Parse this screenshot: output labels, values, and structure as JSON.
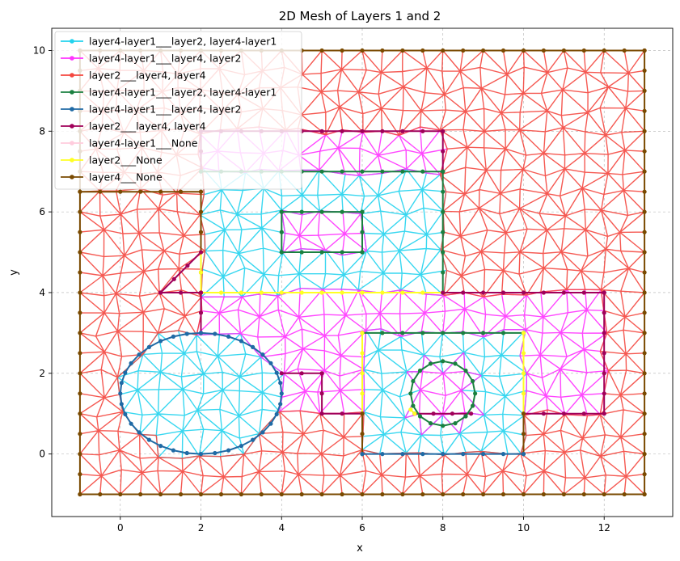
{
  "chart_data": {
    "type": "line",
    "title": "2D Mesh of Layers 1 and 2",
    "xlabel": "x",
    "ylabel": "y",
    "xlim": [
      -1.7,
      13.7
    ],
    "ylim": [
      -1.55,
      10.55
    ],
    "xticks": [
      0,
      2,
      4,
      6,
      8,
      10,
      12
    ],
    "yticks": [
      0,
      2,
      4,
      6,
      8,
      10
    ],
    "grid": true,
    "legend_position": "top-left",
    "series": [
      {
        "name": "layer4-layer1___layer2, layer4-layer1",
        "color": "#22d3ee"
      },
      {
        "name": "layer4-layer1___layer4, layer2",
        "color": "#ff33ff"
      },
      {
        "name": "layer2___layer4, layer4",
        "color": "#f4473f"
      },
      {
        "name": "layer4-layer1___layer2, layer4-layer1",
        "color": "#1a8040"
      },
      {
        "name": "layer4-layer1___layer4, layer2",
        "color": "#1f6aa5"
      },
      {
        "name": "layer2___layer4, layer4",
        "color": "#a0005a"
      },
      {
        "name": "layer4-layer1___None",
        "color": "#ffccdd"
      },
      {
        "name": "layer2___None",
        "color": "#ffff22"
      },
      {
        "name": "layer4___None",
        "color": "#7a4a00"
      }
    ],
    "regions": [
      {
        "series": 2,
        "shape": "rect",
        "x": [
          -1,
          13
        ],
        "y": [
          -1,
          10
        ]
      },
      {
        "series": 1,
        "shape": "rect",
        "x": [
          2,
          8
        ],
        "y": [
          7,
          8
        ]
      },
      {
        "series": 0,
        "shape": "rect",
        "x": [
          2,
          8
        ],
        "y": [
          4,
          7
        ]
      },
      {
        "series": 1,
        "shape": "rect",
        "x": [
          4,
          6
        ],
        "y": [
          5,
          6
        ]
      },
      {
        "series": 1,
        "shape": "rect",
        "x": [
          2,
          12
        ],
        "y": [
          1,
          4
        ]
      },
      {
        "series": 0,
        "shape": "ellipse",
        "cx": 2,
        "cy": 1.5,
        "rx": 2,
        "ry": 1.5
      },
      {
        "series": 0,
        "shape": "rect",
        "x": [
          6,
          10
        ],
        "y": [
          0,
          3
        ]
      },
      {
        "series": 1,
        "shape": "ellipse",
        "cx": 8,
        "cy": 1.5,
        "rx": 0.8,
        "ry": 0.8
      }
    ],
    "boundaries": [
      {
        "series": 8,
        "points": [
          [
            -1,
            -1
          ],
          [
            13,
            -1
          ],
          [
            13,
            10
          ],
          [
            -1,
            10
          ],
          [
            -1,
            -1
          ]
        ]
      },
      {
        "series": 8,
        "points": [
          [
            -1,
            6.5
          ],
          [
            2,
            6.5
          ],
          [
            2,
            4
          ]
        ]
      },
      {
        "series": 5,
        "points": [
          [
            2,
            7
          ],
          [
            2,
            8
          ],
          [
            8,
            8
          ],
          [
            8,
            7
          ]
        ]
      },
      {
        "series": 3,
        "points": [
          [
            2,
            7
          ],
          [
            8,
            7
          ],
          [
            8,
            4
          ]
        ]
      },
      {
        "series": 7,
        "points": [
          [
            2,
            5
          ],
          [
            2,
            4
          ],
          [
            8,
            4
          ]
        ]
      },
      {
        "series": 5,
        "points": [
          [
            1,
            4
          ],
          [
            2,
            5
          ]
        ]
      },
      {
        "series": 5,
        "points": [
          [
            1,
            4
          ],
          [
            2,
            4
          ],
          [
            2,
            3
          ]
        ]
      },
      {
        "series": 3,
        "points": [
          [
            4,
            5
          ],
          [
            6,
            5
          ],
          [
            6,
            6
          ],
          [
            4,
            6
          ],
          [
            4,
            5
          ]
        ]
      },
      {
        "series": 5,
        "points": [
          [
            8,
            4
          ],
          [
            12,
            4
          ],
          [
            12,
            1
          ],
          [
            10,
            1
          ]
        ]
      },
      {
        "series": 5,
        "points": [
          [
            5,
            1
          ],
          [
            6,
            1
          ]
        ]
      },
      {
        "series": 5,
        "points": [
          [
            4,
            2
          ],
          [
            5,
            2
          ],
          [
            5,
            1
          ]
        ]
      },
      {
        "series": 3,
        "points": [
          [
            6,
            3
          ],
          [
            10,
            3
          ]
        ]
      },
      {
        "series": 7,
        "points": [
          [
            6,
            3
          ],
          [
            6,
            1
          ]
        ]
      },
      {
        "series": 7,
        "points": [
          [
            10,
            3
          ],
          [
            10,
            1
          ]
        ]
      },
      {
        "series": 8,
        "points": [
          [
            6,
            1
          ],
          [
            6,
            0
          ]
        ]
      },
      {
        "series": 8,
        "points": [
          [
            10,
            1
          ],
          [
            10,
            0
          ]
        ]
      },
      {
        "series": 4,
        "points": [
          [
            6,
            0
          ],
          [
            10,
            0
          ]
        ]
      },
      {
        "series": 5,
        "points": [
          [
            7.3,
            1
          ],
          [
            8.7,
            1
          ]
        ]
      },
      {
        "series": 7,
        "points": [
          [
            7.2,
            1.1
          ],
          [
            7.3,
            1
          ]
        ]
      }
    ],
    "ellipse_boundaries": [
      {
        "series": 4,
        "cx": 2,
        "cy": 1.5,
        "rx": 2,
        "ry": 1.5
      },
      {
        "series": 3,
        "cx": 8,
        "cy": 1.5,
        "rx": 0.8,
        "ry": 0.8
      }
    ]
  }
}
